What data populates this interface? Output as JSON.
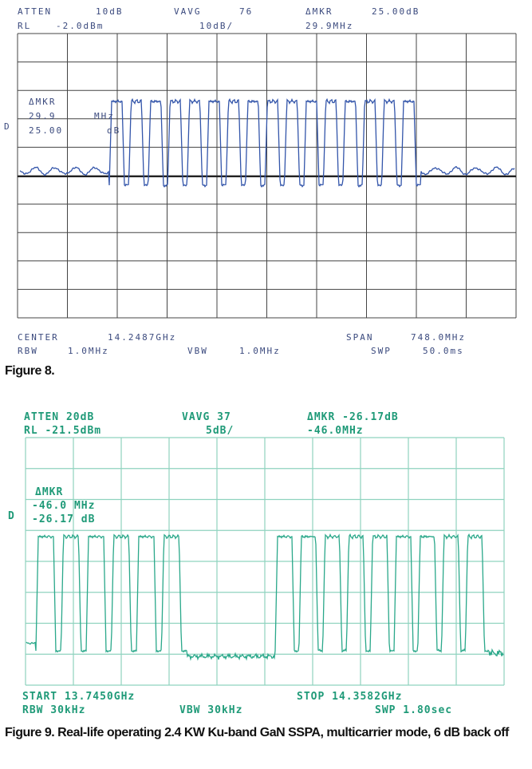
{
  "figure8": {
    "header": [
      [
        "ATTEN",
        "10dB",
        "VAVG",
        "76",
        "ΔMKR",
        "25.00dB"
      ],
      [
        "RL",
        "-2.0dBm",
        "10dB/",
        "29.9MHz"
      ]
    ],
    "marker": [
      "ΔMKR",
      "29.9",
      "MHz",
      "25.00",
      "dB"
    ],
    "trace_label": "D",
    "footer": [
      [
        "CENTER",
        "14.2487GHz",
        "SPAN",
        "748.0MHz"
      ],
      [
        "RBW",
        "1.0MHz",
        "VBW",
        "1.0MHz",
        "SWP",
        "50.0ms"
      ]
    ],
    "caption": "Figure 8."
  },
  "figure9": {
    "header": [
      [
        "ATTEN 20dB",
        "VAVG 37",
        "ΔMKR -26.17dB"
      ],
      [
        "RL -21.5dBm",
        "5dB/",
        "-46.0MHz"
      ]
    ],
    "marker": [
      "ΔMKR",
      "-46.0 MHz",
      "-26.17 dB"
    ],
    "trace_label": "D",
    "footer": [
      [
        "START 13.7450GHz",
        "STOP 14.3582GHz"
      ],
      [
        "RBW 30kHz",
        "VBW 30kHz",
        "SWP 1.80sec"
      ]
    ],
    "caption": "Figure 9. Real-life operating 2.4 KW Ku-band GaN SSPA, multicarrier mode, 6 dB back off"
  }
}
